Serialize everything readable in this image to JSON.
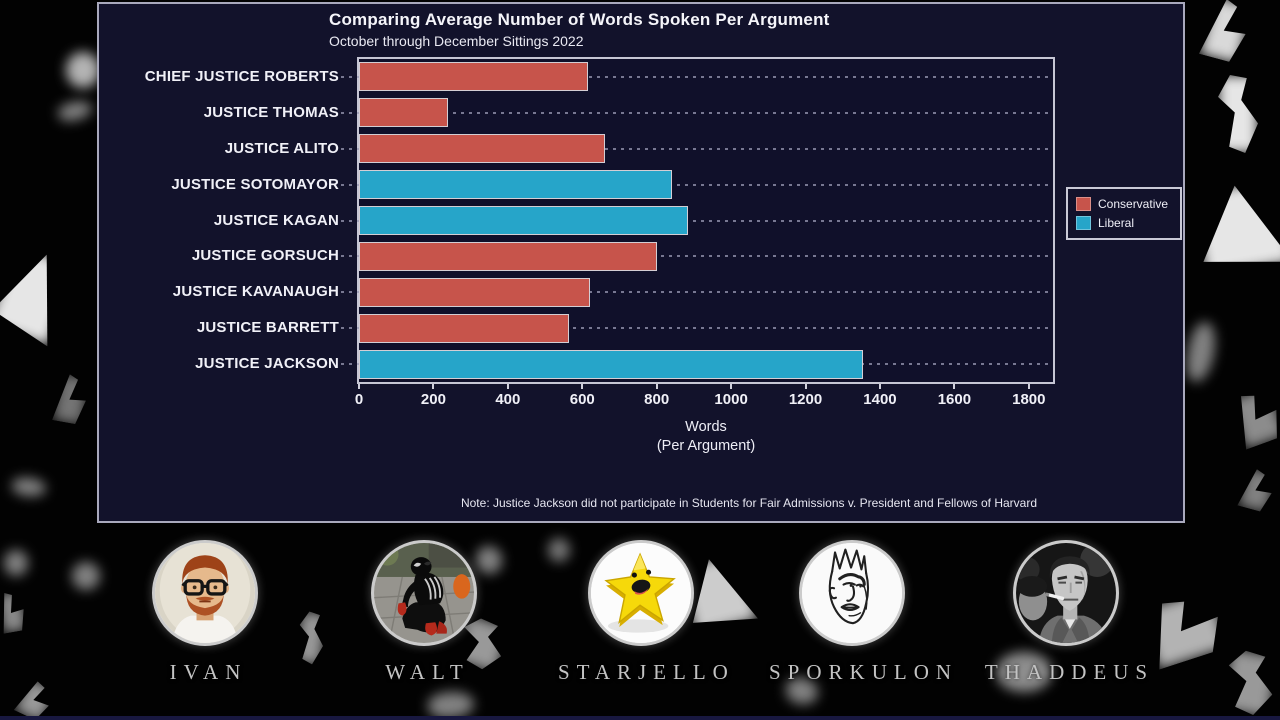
{
  "chart_data": {
    "type": "bar",
    "orientation": "horizontal",
    "title": "Comparing Average Number of Words Spoken Per Argument",
    "subtitle": "October through December Sittings 2022",
    "xlabel_line1": "Words",
    "xlabel_line2": "(Per Argument)",
    "categories": [
      "CHIEF JUSTICE ROBERTS",
      "JUSTICE THOMAS",
      "JUSTICE ALITO",
      "JUSTICE SOTOMAYOR",
      "JUSTICE KAGAN",
      "JUSTICE GORSUCH",
      "JUSTICE KAVANAUGH",
      "JUSTICE BARRETT",
      "JUSTICE JACKSON"
    ],
    "values": [
      615,
      240,
      660,
      840,
      885,
      800,
      620,
      565,
      1355
    ],
    "groups": [
      "Conservative",
      "Conservative",
      "Conservative",
      "Liberal",
      "Liberal",
      "Conservative",
      "Conservative",
      "Conservative",
      "Liberal"
    ],
    "x_ticks": [
      0,
      200,
      400,
      600,
      800,
      1000,
      1200,
      1400,
      1600,
      1800
    ],
    "xlim": [
      0,
      1865
    ],
    "grid": "dotted horizontal line per category row",
    "legend_position": "right of plot, outside",
    "legend": [
      {
        "label": "Conservative",
        "color": "#c7544b"
      },
      {
        "label": "Liberal",
        "color": "#26a5c9"
      }
    ],
    "note": "Note: Justice Jackson did not participate in Students for Fair Admissions v. President and Fellows of Harvard"
  },
  "colors": {
    "panel_background": "#12122b",
    "panel_border": "#a9a9bd",
    "plot_border": "#c6c6d4",
    "conservative": "#c7544b",
    "liberal": "#26a5c9",
    "text": "#f0f0f7",
    "outer_background": "#020202"
  },
  "players": [
    {
      "name": "IVAN",
      "avatar": "red-haired man with bowl cut, black glasses and beard"
    },
    {
      "name": "WALT",
      "avatar": "person crouching in black spider costume with red gloves"
    },
    {
      "name": "STARJELLO",
      "avatar": "smiling yellow jello star"
    },
    {
      "name": "SPORKULON",
      "avatar": "line drawing of handsome face with spork tines"
    },
    {
      "name": "THADDEUS",
      "avatar": "black and white photo of stern man with cigarette"
    }
  ]
}
